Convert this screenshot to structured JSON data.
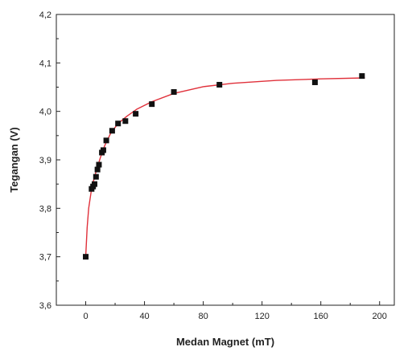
{
  "chart_data": {
    "type": "scatter",
    "xlabel": "Medan Magnet (mT)",
    "ylabel": "Tegangan (V)",
    "xlim": [
      -20,
      210
    ],
    "ylim": [
      3.6,
      4.2
    ],
    "x_ticks": [
      "0",
      "40",
      "80",
      "120",
      "160",
      "200"
    ],
    "y_ticks": [
      "3,6",
      "3,7",
      "3,8",
      "3,9",
      "4,0",
      "4,1",
      "4,2"
    ],
    "grid": false,
    "series": [
      {
        "marker": "square",
        "color": "#111111",
        "points": [
          {
            "x": 0,
            "y": 3.7
          },
          {
            "x": 4,
            "y": 3.84
          },
          {
            "x": 5,
            "y": 3.845
          },
          {
            "x": 6,
            "y": 3.85
          },
          {
            "x": 7,
            "y": 3.865
          },
          {
            "x": 8,
            "y": 3.88
          },
          {
            "x": 9,
            "y": 3.89
          },
          {
            "x": 11,
            "y": 3.915
          },
          {
            "x": 12,
            "y": 3.92
          },
          {
            "x": 14,
            "y": 3.94
          },
          {
            "x": 18,
            "y": 3.96
          },
          {
            "x": 22,
            "y": 3.975
          },
          {
            "x": 27,
            "y": 3.98
          },
          {
            "x": 34,
            "y": 3.995
          },
          {
            "x": 45,
            "y": 4.015
          },
          {
            "x": 60,
            "y": 4.04
          },
          {
            "x": 91,
            "y": 4.055
          },
          {
            "x": 156,
            "y": 4.06
          },
          {
            "x": 188,
            "y": 4.073
          }
        ]
      },
      {
        "type": "line",
        "role": "fit",
        "color": "#e0303a",
        "points": [
          {
            "x": 0,
            "y": 3.7
          },
          {
            "x": 1,
            "y": 3.76
          },
          {
            "x": 2,
            "y": 3.8
          },
          {
            "x": 4,
            "y": 3.84
          },
          {
            "x": 6,
            "y": 3.865
          },
          {
            "x": 8,
            "y": 3.885
          },
          {
            "x": 10,
            "y": 3.905
          },
          {
            "x": 13,
            "y": 3.93
          },
          {
            "x": 17,
            "y": 3.955
          },
          {
            "x": 22,
            "y": 3.975
          },
          {
            "x": 28,
            "y": 3.99
          },
          {
            "x": 35,
            "y": 4.005
          },
          {
            "x": 45,
            "y": 4.02
          },
          {
            "x": 60,
            "y": 4.037
          },
          {
            "x": 80,
            "y": 4.051
          },
          {
            "x": 100,
            "y": 4.058
          },
          {
            "x": 130,
            "y": 4.064
          },
          {
            "x": 160,
            "y": 4.067
          },
          {
            "x": 190,
            "y": 4.069
          }
        ]
      }
    ]
  }
}
